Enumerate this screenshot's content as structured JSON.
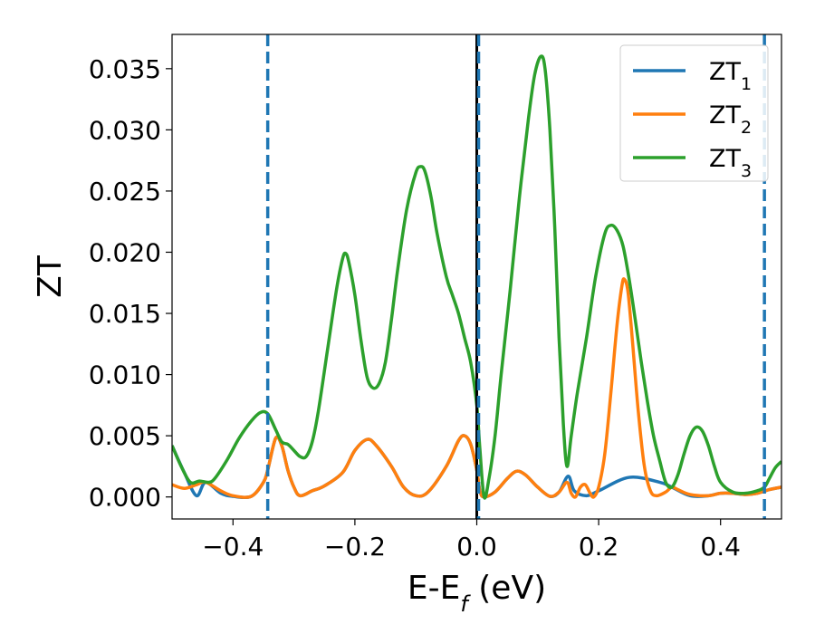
{
  "chart_data": {
    "type": "line",
    "title": "",
    "xlabel": "E-E",
    "xlabel_subscript": "f",
    "xlabel_suffix": " (eV)",
    "ylabel": "ZT",
    "xlim": [
      -0.5,
      0.5
    ],
    "ylim": [
      -0.0018,
      0.0378
    ],
    "x_ticks": [
      -0.4,
      -0.2,
      0.0,
      0.2,
      0.4
    ],
    "x_tick_labels": [
      "−0.4",
      "−0.2",
      "0.0",
      "0.2",
      "0.4"
    ],
    "y_ticks": [
      0.0,
      0.005,
      0.01,
      0.015,
      0.02,
      0.025,
      0.03,
      0.035
    ],
    "y_tick_labels": [
      "0.000",
      "0.005",
      "0.010",
      "0.015",
      "0.020",
      "0.025",
      "0.030",
      "0.035"
    ],
    "grid": false,
    "legend_position": "top-right",
    "vertical_lines": [
      {
        "x": -0.343,
        "style": "dashed",
        "color": "#1f77b4"
      },
      {
        "x": 0.0,
        "style": "solid",
        "color": "#000000"
      },
      {
        "x": 0.003,
        "style": "dashed",
        "color": "#1f77b4"
      },
      {
        "x": 0.472,
        "style": "dashed",
        "color": "#1f77b4"
      }
    ],
    "series": [
      {
        "name": "ZT",
        "subscript": "1",
        "color": "#1f77b4",
        "points": [
          [
            -0.5,
            0.0042
          ],
          [
            -0.48,
            0.002
          ],
          [
            -0.46,
            0.0001
          ],
          [
            -0.445,
            0.0012
          ],
          [
            -0.42,
            0.0003
          ],
          [
            -0.4,
            5e-05
          ],
          [
            -0.37,
            5e-05
          ],
          [
            -0.35,
            0.0012
          ],
          [
            -0.343,
            0.0022
          ],
          [
            -0.33,
            0.0048
          ],
          [
            -0.32,
            0.0042
          ],
          [
            -0.31,
            0.0022
          ],
          [
            -0.3,
            0.0008
          ],
          [
            -0.29,
            0.0001
          ],
          [
            -0.27,
            0.0005
          ],
          [
            -0.25,
            0.0009
          ],
          [
            -0.22,
            0.002
          ],
          [
            -0.2,
            0.0038
          ],
          [
            -0.18,
            0.0047
          ],
          [
            -0.165,
            0.0042
          ],
          [
            -0.14,
            0.0025
          ],
          [
            -0.12,
            0.0008
          ],
          [
            -0.1,
            0.0001
          ],
          [
            -0.08,
            0.0004
          ],
          [
            -0.05,
            0.0025
          ],
          [
            -0.03,
            0.0046
          ],
          [
            -0.02,
            0.005
          ],
          [
            -0.01,
            0.0043
          ],
          [
            0.0,
            0.0022
          ],
          [
            0.005,
            0.0005
          ],
          [
            0.012,
            0.0
          ],
          [
            0.03,
            0.0004
          ],
          [
            0.05,
            0.0015
          ],
          [
            0.065,
            0.0021
          ],
          [
            0.08,
            0.0018
          ],
          [
            0.1,
            0.0008
          ],
          [
            0.12,
            5e-05
          ],
          [
            0.135,
            0.0004
          ],
          [
            0.15,
            0.0017
          ],
          [
            0.16,
            0.0005
          ],
          [
            0.18,
            0.0001
          ],
          [
            0.2,
            0.0005
          ],
          [
            0.25,
            0.0016
          ],
          [
            0.3,
            0.0012
          ],
          [
            0.32,
            0.0008
          ],
          [
            0.35,
            0.0001
          ],
          [
            0.38,
            0.0001
          ],
          [
            0.4,
            0.0003
          ],
          [
            0.42,
            0.0003
          ],
          [
            0.44,
            0.0002
          ],
          [
            0.46,
            0.0003
          ],
          [
            0.48,
            0.0006
          ],
          [
            0.5,
            0.0008
          ]
        ]
      },
      {
        "name": "ZT",
        "subscript": "2",
        "color": "#ff7f0e",
        "points": [
          [
            -0.5,
            0.001
          ],
          [
            -0.48,
            0.0007
          ],
          [
            -0.46,
            0.001
          ],
          [
            -0.445,
            0.0012
          ],
          [
            -0.42,
            0.0005
          ],
          [
            -0.4,
            0.0001
          ],
          [
            -0.37,
            5e-05
          ],
          [
            -0.35,
            0.0012
          ],
          [
            -0.343,
            0.0022
          ],
          [
            -0.33,
            0.0048
          ],
          [
            -0.32,
            0.0042
          ],
          [
            -0.31,
            0.0022
          ],
          [
            -0.3,
            0.0008
          ],
          [
            -0.29,
            0.0001
          ],
          [
            -0.27,
            0.0005
          ],
          [
            -0.25,
            0.0009
          ],
          [
            -0.22,
            0.002
          ],
          [
            -0.2,
            0.0038
          ],
          [
            -0.18,
            0.0047
          ],
          [
            -0.165,
            0.0042
          ],
          [
            -0.14,
            0.0025
          ],
          [
            -0.12,
            0.0008
          ],
          [
            -0.1,
            0.0001
          ],
          [
            -0.08,
            0.0004
          ],
          [
            -0.05,
            0.0025
          ],
          [
            -0.03,
            0.0046
          ],
          [
            -0.02,
            0.005
          ],
          [
            -0.01,
            0.0043
          ],
          [
            0.0,
            0.0022
          ],
          [
            0.005,
            0.0005
          ],
          [
            0.012,
            0.0
          ],
          [
            0.03,
            0.0004
          ],
          [
            0.05,
            0.0015
          ],
          [
            0.065,
            0.0021
          ],
          [
            0.08,
            0.0018
          ],
          [
            0.1,
            0.0008
          ],
          [
            0.12,
            5e-05
          ],
          [
            0.135,
            0.0004
          ],
          [
            0.148,
            0.0012
          ],
          [
            0.155,
            0.0003
          ],
          [
            0.162,
            0.0
          ],
          [
            0.17,
            0.0008
          ],
          [
            0.178,
            0.001
          ],
          [
            0.186,
            0.0003
          ],
          [
            0.192,
            0.0
          ],
          [
            0.2,
            0.0008
          ],
          [
            0.21,
            0.0035
          ],
          [
            0.22,
            0.0085
          ],
          [
            0.23,
            0.014
          ],
          [
            0.238,
            0.0172
          ],
          [
            0.242,
            0.0178
          ],
          [
            0.248,
            0.0168
          ],
          [
            0.255,
            0.013
          ],
          [
            0.265,
            0.007
          ],
          [
            0.275,
            0.0025
          ],
          [
            0.285,
            0.0005
          ],
          [
            0.295,
            0.0001
          ],
          [
            0.31,
            0.0004
          ],
          [
            0.32,
            0.0008
          ],
          [
            0.33,
            0.0006
          ],
          [
            0.35,
            0.0002
          ],
          [
            0.38,
            0.0001
          ],
          [
            0.4,
            0.0003
          ],
          [
            0.42,
            0.0003
          ],
          [
            0.44,
            0.0002
          ],
          [
            0.46,
            0.0003
          ],
          [
            0.48,
            0.0006
          ],
          [
            0.5,
            0.0008
          ]
        ]
      },
      {
        "name": "ZT",
        "subscript": "3",
        "color": "#2ca02c",
        "points": [
          [
            -0.5,
            0.0042
          ],
          [
            -0.485,
            0.0025
          ],
          [
            -0.47,
            0.0012
          ],
          [
            -0.455,
            0.0013
          ],
          [
            -0.44,
            0.0012
          ],
          [
            -0.43,
            0.0015
          ],
          [
            -0.41,
            0.003
          ],
          [
            -0.39,
            0.0048
          ],
          [
            -0.37,
            0.0062
          ],
          [
            -0.355,
            0.0069
          ],
          [
            -0.343,
            0.0068
          ],
          [
            -0.33,
            0.0055
          ],
          [
            -0.32,
            0.0045
          ],
          [
            -0.31,
            0.0043
          ],
          [
            -0.3,
            0.0038
          ],
          [
            -0.29,
            0.0033
          ],
          [
            -0.28,
            0.0033
          ],
          [
            -0.27,
            0.0045
          ],
          [
            -0.26,
            0.007
          ],
          [
            -0.245,
            0.012
          ],
          [
            -0.23,
            0.017
          ],
          [
            -0.22,
            0.0195
          ],
          [
            -0.215,
            0.0199
          ],
          [
            -0.21,
            0.0192
          ],
          [
            -0.2,
            0.0165
          ],
          [
            -0.19,
            0.0128
          ],
          [
            -0.18,
            0.0098
          ],
          [
            -0.17,
            0.0089
          ],
          [
            -0.16,
            0.0093
          ],
          [
            -0.15,
            0.011
          ],
          [
            -0.14,
            0.0145
          ],
          [
            -0.13,
            0.0185
          ],
          [
            -0.115,
            0.0235
          ],
          [
            -0.1,
            0.0265
          ],
          [
            -0.092,
            0.027
          ],
          [
            -0.085,
            0.0266
          ],
          [
            -0.075,
            0.0245
          ],
          [
            -0.065,
            0.0215
          ],
          [
            -0.05,
            0.018
          ],
          [
            -0.04,
            0.0165
          ],
          [
            -0.03,
            0.015
          ],
          [
            -0.02,
            0.013
          ],
          [
            -0.01,
            0.011
          ],
          [
            0.0,
            0.0075
          ],
          [
            0.005,
            0.004
          ],
          [
            0.012,
            0.0
          ],
          [
            0.02,
            0.0015
          ],
          [
            0.03,
            0.005
          ],
          [
            0.04,
            0.01
          ],
          [
            0.055,
            0.017
          ],
          [
            0.07,
            0.0245
          ],
          [
            0.085,
            0.031
          ],
          [
            0.095,
            0.0345
          ],
          [
            0.105,
            0.036
          ],
          [
            0.112,
            0.035
          ],
          [
            0.12,
            0.03
          ],
          [
            0.128,
            0.022
          ],
          [
            0.135,
            0.013
          ],
          [
            0.142,
            0.006
          ],
          [
            0.148,
            0.0025
          ],
          [
            0.155,
            0.005
          ],
          [
            0.165,
            0.0085
          ],
          [
            0.18,
            0.013
          ],
          [
            0.195,
            0.018
          ],
          [
            0.21,
            0.0215
          ],
          [
            0.22,
            0.0222
          ],
          [
            0.23,
            0.0218
          ],
          [
            0.24,
            0.0205
          ],
          [
            0.25,
            0.0178
          ],
          [
            0.26,
            0.0145
          ],
          [
            0.27,
            0.011
          ],
          [
            0.28,
            0.0078
          ],
          [
            0.29,
            0.005
          ],
          [
            0.3,
            0.003
          ],
          [
            0.31,
            0.0012
          ],
          [
            0.32,
            0.0008
          ],
          [
            0.33,
            0.0018
          ],
          [
            0.34,
            0.0035
          ],
          [
            0.35,
            0.005
          ],
          [
            0.36,
            0.0057
          ],
          [
            0.37,
            0.0054
          ],
          [
            0.38,
            0.0042
          ],
          [
            0.39,
            0.0025
          ],
          [
            0.4,
            0.0012
          ],
          [
            0.42,
            0.0004
          ],
          [
            0.44,
            0.0003
          ],
          [
            0.46,
            0.0005
          ],
          [
            0.472,
            0.0008
          ],
          [
            0.48,
            0.0015
          ],
          [
            0.49,
            0.0024
          ],
          [
            0.5,
            0.0029
          ]
        ]
      }
    ]
  }
}
